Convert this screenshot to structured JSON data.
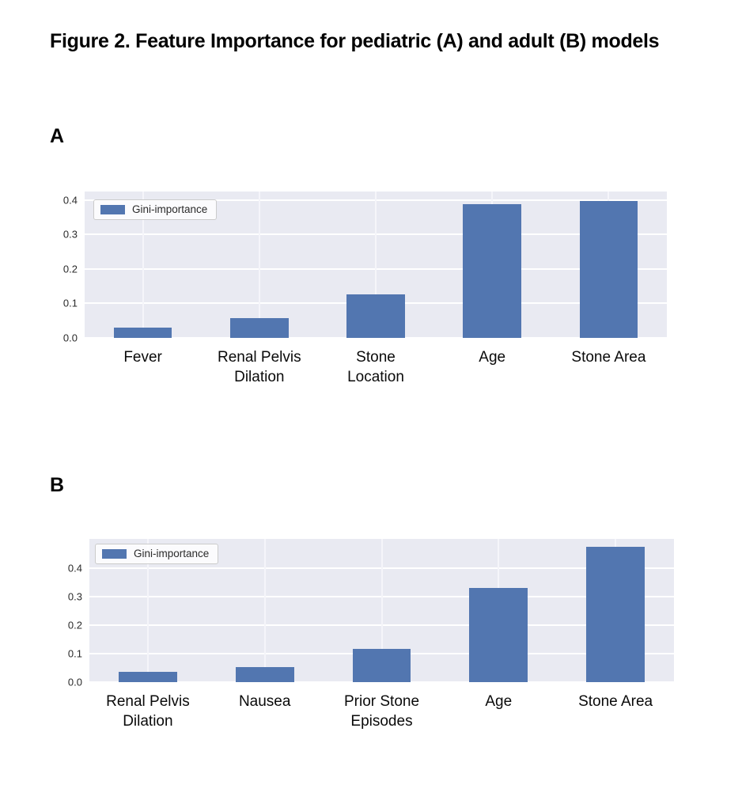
{
  "figure": {
    "title": "Figure 2. Feature Importance for pediatric (A) and adult (B) models"
  },
  "colors": {
    "bar": "#5276b0",
    "plot_background": "#e9eaf2",
    "gridline": "#ffffff",
    "text": "#0a0a0a"
  },
  "chart_data": [
    {
      "type": "bar",
      "panel_label": "A",
      "model": "pediatric",
      "legend_label": "Gini-importance",
      "legend_position": "upper-left",
      "grid": true,
      "categories": [
        "Fever",
        "Renal Pelvis\nDilation",
        "Stone\nLocation",
        "Age",
        "Stone Area"
      ],
      "values": [
        0.03,
        0.057,
        0.126,
        0.388,
        0.397
      ],
      "yticks": [
        0.0,
        0.1,
        0.2,
        0.3,
        0.4
      ],
      "ylim": [
        0,
        0.425
      ],
      "bar_color": "#5276b0",
      "xlabel": "",
      "ylabel": ""
    },
    {
      "type": "bar",
      "panel_label": "B",
      "model": "adult",
      "legend_label": "Gini-importance",
      "legend_position": "upper-left",
      "grid": true,
      "categories": [
        "Renal Pelvis\nDilation",
        "Nausea",
        "Prior Stone\nEpisodes",
        "Age",
        "Stone Area"
      ],
      "values": [
        0.036,
        0.052,
        0.118,
        0.33,
        0.475
      ],
      "yticks": [
        0.0,
        0.1,
        0.2,
        0.3,
        0.4
      ],
      "ylim": [
        0,
        0.503
      ],
      "bar_color": "#5276b0",
      "xlabel": "",
      "ylabel": ""
    }
  ]
}
